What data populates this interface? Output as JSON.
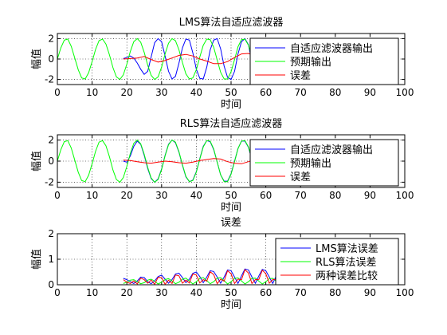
{
  "chart_data": [
    {
      "type": "line",
      "title": "LMS算法自适应滤波器",
      "xlabel": "时间",
      "ylabel": "幅值",
      "xlim": [
        0,
        100
      ],
      "ylim": [
        -2.5,
        2.5
      ],
      "xticks": [
        "0",
        "10",
        "20",
        "30",
        "40",
        "50",
        "60",
        "70",
        "80",
        "90",
        "100"
      ],
      "yticks": [
        "-2",
        "0",
        "2"
      ],
      "grid": true,
      "legend_position": "top-right",
      "series": [
        {
          "name": "自适应滤波器输出",
          "color": "#0000ff",
          "x": [
            19,
            20,
            21,
            22,
            23,
            24,
            25,
            26,
            27,
            28,
            29,
            30,
            31,
            32,
            33,
            34,
            35,
            36,
            37,
            38,
            39,
            40,
            41,
            42,
            43,
            44,
            45,
            46,
            47,
            48,
            49,
            50,
            51,
            52,
            53,
            54,
            55,
            56,
            57,
            58,
            59,
            60,
            61,
            62,
            63,
            64,
            65
          ],
          "values": [
            0.05,
            0.14,
            0.3,
            0.1,
            -0.4,
            -1.0,
            -1.5,
            -1.2,
            0.2,
            1.6,
            2.0,
            1.7,
            0.3,
            -1.2,
            -1.95,
            -1.7,
            -0.4,
            1.1,
            1.95,
            1.85,
            0.6,
            -1.0,
            -1.9,
            -1.95,
            -0.8,
            0.9,
            1.85,
            2.0,
            1.0,
            -0.7,
            -1.8,
            -2.0,
            -1.2,
            0.5,
            1.7,
            2.0,
            1.4,
            -0.3,
            -1.6,
            -2.0,
            -1.5,
            0.0,
            1.5,
            2.0,
            1.7,
            0.3,
            -1.3
          ]
        },
        {
          "name": "预期输出",
          "color": "#00ff00",
          "x": [
            0,
            1,
            2,
            3,
            4,
            5,
            6,
            7,
            8,
            9,
            10,
            11,
            12,
            13,
            14,
            15,
            16,
            17,
            18,
            19,
            20,
            21,
            22,
            23,
            24,
            25,
            26,
            27,
            28,
            29,
            30,
            31,
            32,
            33,
            34,
            35,
            36,
            37,
            38,
            39,
            40,
            41,
            42,
            43,
            44,
            45,
            46,
            47,
            48,
            49,
            50,
            51,
            52,
            53,
            54,
            55,
            56,
            57,
            58,
            59,
            60,
            61,
            62,
            63,
            64,
            65
          ],
          "values": [
            0.0,
            1.1,
            1.85,
            1.95,
            1.25,
            0.1,
            -1.05,
            -1.85,
            -1.95,
            -1.35,
            -0.25,
            0.95,
            1.8,
            1.95,
            1.45,
            0.4,
            -0.85,
            -1.75,
            -2.0,
            -1.55,
            -0.5,
            0.75,
            1.7,
            2.0,
            1.65,
            0.65,
            -0.6,
            -1.6,
            -2.0,
            -1.75,
            -0.8,
            0.5,
            1.55,
            2.0,
            1.8,
            0.9,
            -0.35,
            -1.45,
            -1.95,
            -1.85,
            -1.05,
            0.2,
            1.35,
            1.95,
            1.9,
            1.15,
            -0.1,
            -1.3,
            -1.95,
            -1.95,
            -1.25,
            -0.05,
            1.2,
            1.9,
            1.95,
            1.35,
            0.2,
            -1.05,
            -1.85,
            -2.0,
            -1.5,
            -0.35,
            0.95,
            1.8,
            2.0,
            1.6
          ]
        },
        {
          "name": "误差",
          "color": "#ff0000",
          "x": [
            19,
            21,
            23,
            25,
            27,
            29,
            31,
            33,
            35,
            37,
            39,
            41,
            43,
            45,
            47,
            49,
            51,
            53,
            55,
            57,
            59,
            61,
            63,
            65
          ],
          "values": [
            0.0,
            0.05,
            0.1,
            0.25,
            -0.05,
            -0.3,
            -0.15,
            0.1,
            0.35,
            0.45,
            0.3,
            0.0,
            -0.2,
            -0.45,
            -0.45,
            -0.25,
            0.15,
            0.5,
            0.55,
            0.3,
            -0.15,
            -0.55,
            -0.55,
            -0.2
          ]
        }
      ]
    },
    {
      "type": "line",
      "title": "RLS算法自适应滤波器",
      "xlabel": "时间",
      "ylabel": "幅值",
      "xlim": [
        0,
        100
      ],
      "ylim": [
        -2.5,
        2.5
      ],
      "xticks": [
        "0",
        "10",
        "20",
        "30",
        "40",
        "50",
        "60",
        "70",
        "80",
        "90",
        "100"
      ],
      "yticks": [
        "-2",
        "0",
        "2"
      ],
      "grid": true,
      "legend_position": "top-right",
      "series": [
        {
          "name": "自适应滤波器输出",
          "color": "#0000ff",
          "x": [
            19,
            20,
            21,
            22,
            23,
            24,
            25,
            26,
            27,
            28,
            29,
            30,
            31,
            32,
            33,
            34,
            35,
            36,
            37,
            38,
            39,
            40,
            41,
            42,
            43,
            44,
            45,
            46,
            47,
            48,
            49,
            50,
            51,
            52,
            53,
            54,
            55,
            56,
            57,
            58,
            59,
            60,
            61,
            62,
            63,
            64,
            65
          ],
          "values": [
            0.0,
            -0.1,
            0.5,
            1.4,
            1.9,
            1.6,
            0.55,
            -0.7,
            -1.65,
            -2.0,
            -1.7,
            -0.75,
            0.55,
            1.6,
            2.0,
            1.75,
            0.85,
            -0.4,
            -1.5,
            -1.95,
            -1.8,
            -1.0,
            0.25,
            1.4,
            1.95,
            1.85,
            1.1,
            -0.1,
            -1.3,
            -1.9,
            -1.9,
            -1.2,
            0.0,
            1.2,
            1.9,
            1.9,
            1.3,
            0.15,
            -1.05,
            -1.85,
            -2.0,
            -1.45,
            -0.3,
            0.9,
            1.75,
            2.0,
            1.55
          ]
        },
        {
          "name": "预期输出",
          "color": "#00ff00",
          "x": [
            0,
            1,
            2,
            3,
            4,
            5,
            6,
            7,
            8,
            9,
            10,
            11,
            12,
            13,
            14,
            15,
            16,
            17,
            18,
            19,
            20,
            21,
            22,
            23,
            24,
            25,
            26,
            27,
            28,
            29,
            30,
            31,
            32,
            33,
            34,
            35,
            36,
            37,
            38,
            39,
            40,
            41,
            42,
            43,
            44,
            45,
            46,
            47,
            48,
            49,
            50,
            51,
            52,
            53,
            54,
            55,
            56,
            57,
            58,
            59,
            60,
            61,
            62,
            63,
            64,
            65
          ],
          "values": [
            0.0,
            1.1,
            1.85,
            1.95,
            1.25,
            0.1,
            -1.05,
            -1.85,
            -1.95,
            -1.35,
            -0.25,
            0.95,
            1.8,
            1.95,
            1.45,
            0.4,
            -0.85,
            -1.75,
            -2.0,
            -1.55,
            -0.5,
            0.75,
            1.7,
            2.0,
            1.65,
            0.65,
            -0.6,
            -1.6,
            -2.0,
            -1.75,
            -0.8,
            0.5,
            1.55,
            2.0,
            1.8,
            0.9,
            -0.35,
            -1.45,
            -1.95,
            -1.85,
            -1.05,
            0.2,
            1.35,
            1.95,
            1.9,
            1.15,
            -0.1,
            -1.3,
            -1.95,
            -1.95,
            -1.25,
            -0.05,
            1.2,
            1.9,
            1.95,
            1.35,
            0.2,
            -1.05,
            -1.85,
            -2.0,
            -1.5,
            -0.35,
            0.95,
            1.8,
            2.0,
            1.6
          ]
        },
        {
          "name": "误差",
          "color": "#ff0000",
          "x": [
            19,
            21,
            23,
            25,
            27,
            29,
            31,
            33,
            35,
            37,
            39,
            41,
            43,
            45,
            47,
            49,
            51,
            53,
            55,
            57,
            59,
            61,
            63,
            65
          ],
          "values": [
            0.1,
            0.05,
            -0.05,
            -0.15,
            -0.2,
            -0.1,
            0.0,
            -0.05,
            -0.15,
            -0.2,
            -0.1,
            0.05,
            0.15,
            0.25,
            0.2,
            -0.05,
            -0.2,
            -0.25,
            -0.05,
            0.2,
            0.3,
            0.15,
            -0.1,
            -0.25
          ]
        }
      ]
    },
    {
      "type": "line",
      "title": "误差",
      "xlabel": "时间",
      "ylabel": "幅值",
      "xlim": [
        0,
        100
      ],
      "ylim": [
        0,
        2
      ],
      "xticks": [
        "0",
        "10",
        "20",
        "30",
        "40",
        "50",
        "60",
        "70",
        "80",
        "90",
        "100"
      ],
      "yticks": [
        "0",
        "1",
        "2"
      ],
      "grid": true,
      "legend_position": "top-right",
      "series": [
        {
          "name": "LMS算法误差",
          "color": "#0000ff",
          "x": [
            19,
            20,
            21,
            22,
            23,
            24,
            25,
            26,
            27,
            28,
            29,
            30,
            31,
            32,
            33,
            34,
            35,
            36,
            37,
            38,
            39,
            40,
            41,
            42,
            43,
            44,
            45,
            46,
            47,
            48,
            49,
            50,
            51,
            52,
            53,
            54,
            55,
            56,
            57,
            58,
            59,
            60,
            61,
            62,
            63,
            64,
            65
          ],
          "values": [
            0.25,
            0.2,
            0.12,
            0.05,
            0.15,
            0.3,
            0.28,
            0.12,
            0.04,
            0.15,
            0.32,
            0.38,
            0.22,
            0.06,
            0.2,
            0.42,
            0.45,
            0.28,
            0.08,
            0.22,
            0.45,
            0.5,
            0.32,
            0.08,
            0.3,
            0.55,
            0.52,
            0.3,
            0.06,
            0.3,
            0.58,
            0.55,
            0.3,
            0.05,
            0.35,
            0.62,
            0.58,
            0.3,
            0.06,
            0.35,
            0.6,
            0.55,
            0.3,
            0.05,
            0.35,
            0.55,
            0.45
          ]
        },
        {
          "name": "RLS算法误差",
          "color": "#00ff00",
          "x": [
            19,
            20,
            21,
            22,
            23,
            24,
            25,
            26,
            27,
            28,
            29,
            30,
            31,
            32,
            33,
            34,
            35,
            36,
            37,
            38,
            39,
            40,
            41,
            42,
            43,
            44,
            45,
            46,
            47,
            48,
            49,
            50,
            51,
            52,
            53,
            54,
            55,
            56,
            57,
            58,
            59,
            60,
            61,
            62,
            63,
            64,
            65
          ],
          "values": [
            0.05,
            0.1,
            0.18,
            0.2,
            0.12,
            0.04,
            0.08,
            0.18,
            0.22,
            0.14,
            0.03,
            0.1,
            0.2,
            0.24,
            0.15,
            0.04,
            0.1,
            0.22,
            0.26,
            0.15,
            0.03,
            0.12,
            0.25,
            0.28,
            0.16,
            0.04,
            0.12,
            0.26,
            0.28,
            0.16,
            0.03,
            0.12,
            0.25,
            0.27,
            0.15,
            0.03,
            0.12,
            0.25,
            0.26,
            0.14,
            0.03,
            0.12,
            0.24,
            0.25,
            0.14,
            0.04,
            0.12
          ]
        },
        {
          "name": "两种误差比较",
          "color": "#ff0000",
          "x": [
            19,
            20,
            21,
            22,
            23,
            24,
            25,
            26,
            27,
            28,
            29,
            30,
            31,
            32,
            33,
            34,
            35,
            36,
            37,
            38,
            39,
            40,
            41,
            42,
            43,
            44,
            45,
            46,
            47,
            48,
            49,
            50,
            51,
            52,
            53,
            54,
            55,
            56,
            57,
            58,
            59,
            60,
            61,
            62,
            63,
            64,
            65
          ],
          "values": [
            0.2,
            0.1,
            0.05,
            0.15,
            0.03,
            0.26,
            0.2,
            0.06,
            0.18,
            0.02,
            0.29,
            0.28,
            0.02,
            0.18,
            0.05,
            0.38,
            0.35,
            0.06,
            0.18,
            0.07,
            0.42,
            0.38,
            0.07,
            0.2,
            0.14,
            0.51,
            0.4,
            0.04,
            0.22,
            0.14,
            0.55,
            0.43,
            0.05,
            0.22,
            0.2,
            0.59,
            0.46,
            0.05,
            0.2,
            0.21,
            0.57,
            0.43,
            0.06,
            0.2,
            0.21,
            0.51,
            0.33
          ]
        }
      ]
    }
  ]
}
